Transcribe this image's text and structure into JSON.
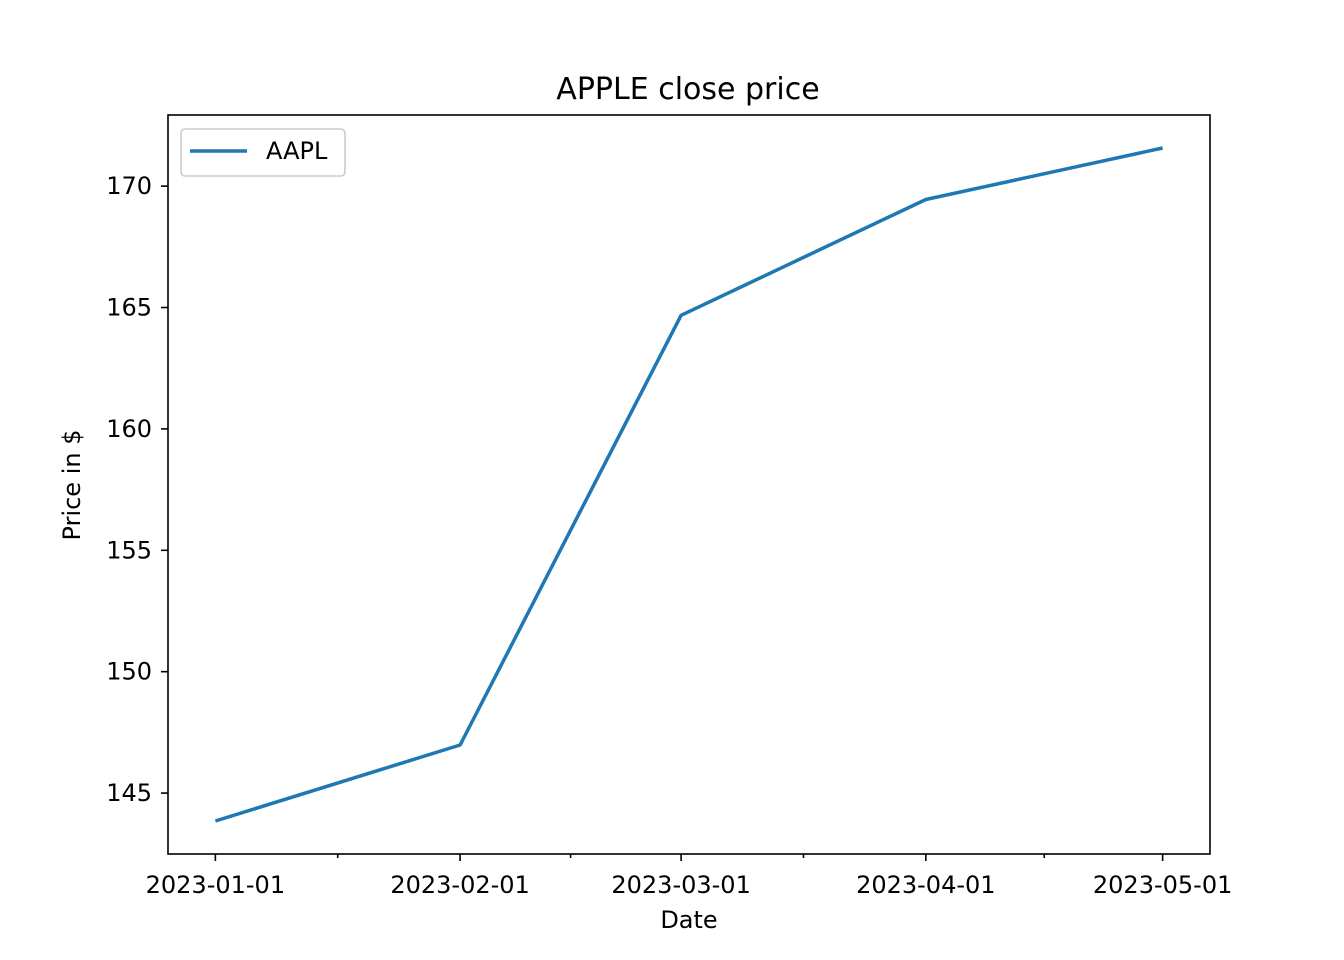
{
  "chart_data": {
    "type": "line",
    "title": "APPLE close price",
    "xlabel": "Date",
    "ylabel": "Price in $",
    "x": [
      "2023-01-01",
      "2023-02-01",
      "2023-03-01",
      "2023-04-01",
      "2023-05-01"
    ],
    "series": [
      {
        "name": "AAPL",
        "values": [
          143.85,
          146.98,
          164.68,
          169.45,
          171.57
        ],
        "color": "#1f77b4"
      }
    ],
    "ylim": [
      142.49,
      172.93
    ],
    "x_ticks": [
      "2023-01-01",
      "2023-02-01",
      "2023-03-01",
      "2023-04-01",
      "2023-05-01"
    ],
    "y_ticks": [
      145,
      150,
      155,
      160,
      165,
      170
    ],
    "legend": {
      "placement": "upper-left"
    },
    "grid": false
  }
}
